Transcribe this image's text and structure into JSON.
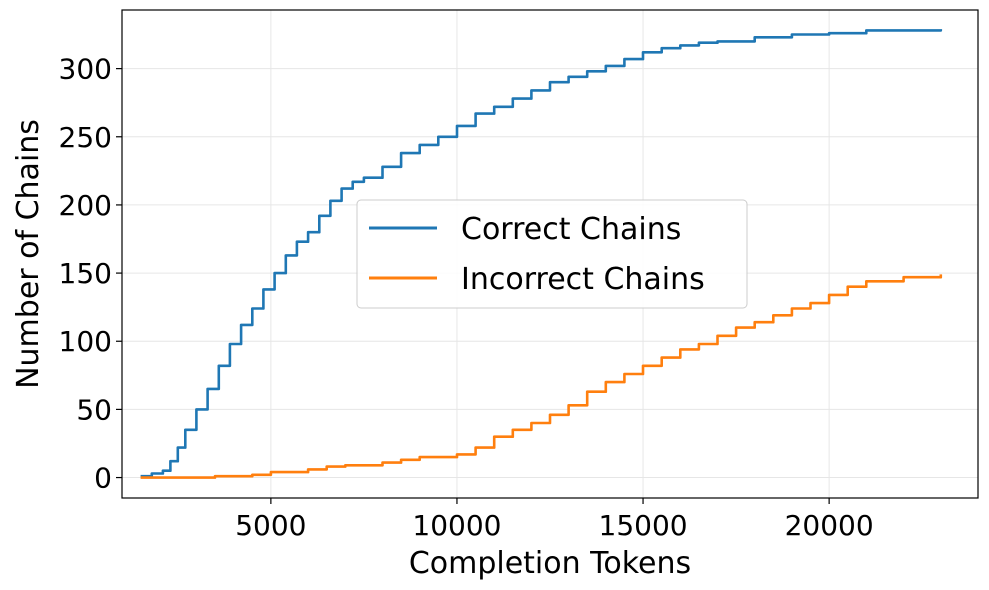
{
  "chart_data": {
    "type": "line",
    "title": "",
    "xlabel": "Completion Tokens",
    "ylabel": "Number of Chains",
    "xlim": [
      1000,
      24000
    ],
    "ylim": [
      -15,
      343
    ],
    "xticks": [
      5000,
      10000,
      15000,
      20000
    ],
    "xtick_labels": [
      "5000",
      "10000",
      "15000",
      "20000"
    ],
    "yticks": [
      0,
      50,
      100,
      150,
      200,
      250,
      300
    ],
    "ytick_labels": [
      "0",
      "50",
      "100",
      "150",
      "200",
      "250",
      "300"
    ],
    "grid": true,
    "legend_position": "center",
    "series": [
      {
        "name": "Correct Chains",
        "color": "#1f77b4",
        "x": [
          1500,
          1800,
          2100,
          2300,
          2500,
          2700,
          3000,
          3300,
          3600,
          3900,
          4200,
          4500,
          4800,
          5100,
          5400,
          5700,
          6000,
          6300,
          6600,
          6900,
          7200,
          7500,
          8000,
          8500,
          9000,
          9500,
          10000,
          10500,
          11000,
          11500,
          12000,
          12500,
          13000,
          13500,
          14000,
          14500,
          15000,
          15500,
          16000,
          16500,
          17000,
          18000,
          19000,
          20000,
          21000,
          22000,
          23000
        ],
        "y": [
          1,
          3,
          5,
          12,
          22,
          35,
          50,
          65,
          82,
          98,
          112,
          124,
          138,
          150,
          163,
          173,
          180,
          192,
          203,
          212,
          217,
          220,
          228,
          238,
          244,
          250,
          258,
          267,
          272,
          278,
          284,
          290,
          294,
          298,
          302,
          307,
          312,
          315,
          317,
          319,
          320,
          323,
          325,
          326,
          328,
          328,
          329
        ]
      },
      {
        "name": "Incorrect Chains",
        "color": "#ff7f0e",
        "x": [
          1500,
          2500,
          3500,
          4500,
          5000,
          6000,
          6500,
          7000,
          8000,
          8500,
          9000,
          10000,
          10500,
          11000,
          11500,
          12000,
          12500,
          13000,
          13500,
          14000,
          14500,
          15000,
          15500,
          16000,
          16500,
          17000,
          17500,
          18000,
          18500,
          19000,
          19500,
          20000,
          20500,
          21000,
          22000,
          23000
        ],
        "y": [
          0,
          0,
          1,
          2,
          4,
          6,
          8,
          9,
          11,
          13,
          15,
          17,
          22,
          30,
          35,
          40,
          46,
          53,
          63,
          70,
          76,
          82,
          88,
          94,
          98,
          104,
          110,
          114,
          119,
          124,
          128,
          134,
          140,
          144,
          147,
          149
        ]
      }
    ]
  }
}
